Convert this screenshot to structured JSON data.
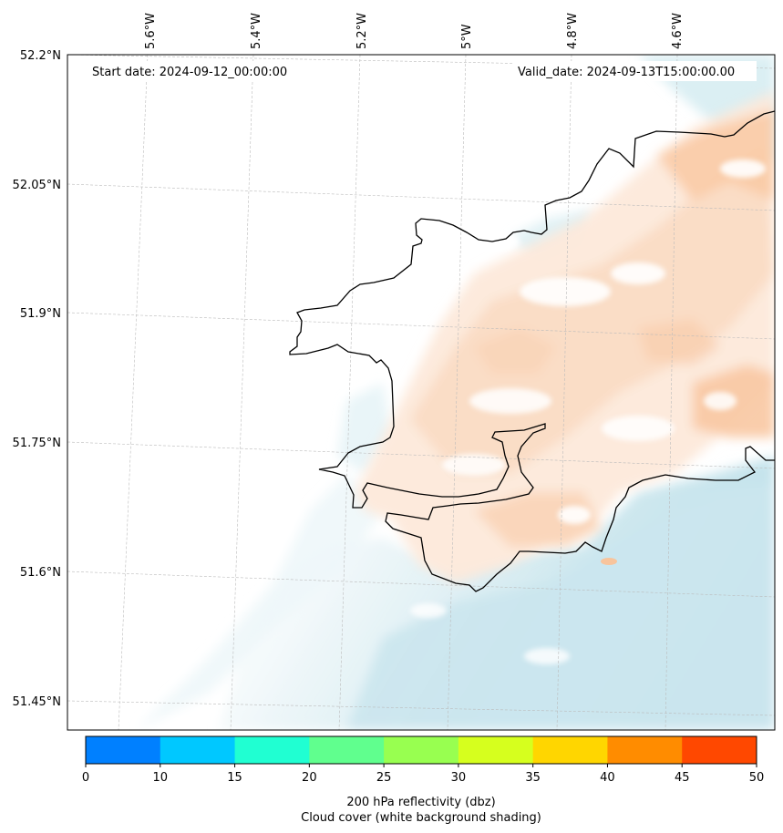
{
  "map": {
    "start_date": "Start date: 2024-09-12_00:00:00",
    "valid_date": "Valid_date: 2024-09-13T15:00:00.00",
    "lon_labels": [
      "5.6°W",
      "5.4°W",
      "5.2°W",
      "5°W",
      "4.8°W",
      "4.6°W"
    ],
    "lat_labels": [
      "52.2°N",
      "52.05°N",
      "51.9°N",
      "51.75°N",
      "51.6°N",
      "51.45°N"
    ]
  },
  "colorbar": {
    "ticks": [
      "0",
      "10",
      "15",
      "20",
      "25",
      "30",
      "35",
      "40",
      "45",
      "50"
    ],
    "colors": [
      "#0080ff",
      "#00c8ff",
      "#20ffd2",
      "#60ff8e",
      "#98ff50",
      "#d6ff1e",
      "#ffd600",
      "#ff8c00",
      "#ff4800"
    ],
    "label_line1": "200 hPa reflectivity (dbz)",
    "label_line2": "Cloud cover (white background shading)"
  },
  "colors": {
    "sea_shading": "#c5e4ec",
    "cloud_shading": "#fbdcc2",
    "coastline": "#000000",
    "gridline": "#bbbbbb"
  }
}
